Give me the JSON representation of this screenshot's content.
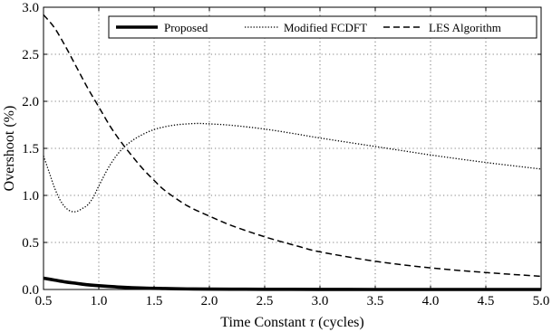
{
  "chart_data": {
    "type": "line",
    "title": "",
    "xlabel": "Time Constant τ (cycles)",
    "xlabel_text": "Time Constant ",
    "xlabel_symbol": "τ",
    "xlabel_unit": " (cycles)",
    "ylabel": "Overshoot (%)",
    "xlim": [
      0.5,
      5.0
    ],
    "ylim": [
      0.0,
      3.0
    ],
    "grid": true,
    "legend_position": "top",
    "x_ticks": [
      "0.5",
      "1.0",
      "1.5",
      "2.0",
      "2.5",
      "3.0",
      "3.5",
      "4.0",
      "4.5",
      "5.0"
    ],
    "y_ticks": [
      "0.0",
      "0.5",
      "1.0",
      "1.5",
      "2.0",
      "2.5",
      "3.0"
    ],
    "series": [
      {
        "name": "Proposed",
        "style": "solid-thick",
        "color": "#000000",
        "x": [
          0.5,
          0.6,
          0.7,
          0.8,
          0.9,
          1.0,
          1.2,
          1.4,
          1.6,
          1.8,
          2.0,
          2.5,
          3.0,
          3.5,
          4.0,
          4.5,
          5.0
        ],
        "y": [
          0.12,
          0.1,
          0.08,
          0.065,
          0.05,
          0.04,
          0.025,
          0.015,
          0.01,
          0.006,
          0.004,
          0.002,
          0.001,
          0.0,
          0.0,
          0.0,
          0.0
        ]
      },
      {
        "name": "Modified FCDFT",
        "style": "dotted",
        "color": "#000000",
        "x": [
          0.5,
          0.55,
          0.6,
          0.65,
          0.7,
          0.75,
          0.8,
          0.85,
          0.9,
          0.95,
          1.0,
          1.1,
          1.2,
          1.3,
          1.4,
          1.5,
          1.6,
          1.7,
          1.8,
          1.9,
          2.0,
          2.2,
          2.5,
          2.8,
          3.0,
          3.5,
          4.0,
          4.5,
          5.0
        ],
        "y": [
          1.42,
          1.25,
          1.08,
          0.95,
          0.87,
          0.83,
          0.83,
          0.86,
          0.9,
          0.98,
          1.1,
          1.32,
          1.48,
          1.58,
          1.65,
          1.7,
          1.73,
          1.75,
          1.76,
          1.765,
          1.76,
          1.745,
          1.705,
          1.65,
          1.61,
          1.52,
          1.43,
          1.35,
          1.28
        ]
      },
      {
        "name": "LES Algorithm",
        "style": "dashed",
        "color": "#000000",
        "x": [
          0.5,
          0.6,
          0.7,
          0.8,
          0.9,
          1.0,
          1.1,
          1.2,
          1.3,
          1.4,
          1.5,
          1.6,
          1.8,
          2.0,
          2.2,
          2.5,
          2.8,
          3.0,
          3.5,
          4.0,
          4.5,
          5.0
        ],
        "y": [
          2.92,
          2.78,
          2.58,
          2.36,
          2.14,
          1.94,
          1.74,
          1.57,
          1.42,
          1.28,
          1.16,
          1.05,
          0.89,
          0.78,
          0.68,
          0.56,
          0.46,
          0.4,
          0.3,
          0.23,
          0.18,
          0.14
        ]
      }
    ]
  }
}
